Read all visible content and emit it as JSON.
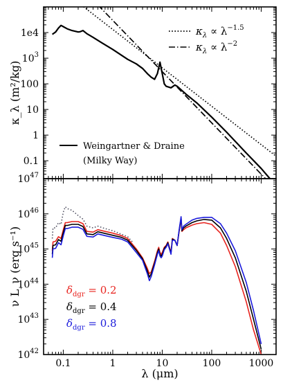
{
  "chart_data": [
    {
      "type": "line",
      "panel": "top",
      "ylabel": "κ_λ (m²/kg)",
      "x_scale": "log",
      "y_scale": "log",
      "xlim": [
        0.04,
        2000
      ],
      "ylim": [
        0.02,
        100000
      ],
      "ytick_labels": [
        {
          "value": 0.1,
          "label": "0.1"
        },
        {
          "value": 1,
          "label": "1"
        },
        {
          "value": 10,
          "label": "10"
        },
        {
          "value": 100,
          "label": "100"
        },
        {
          "value": 1000,
          "label": "10",
          "sup": "3"
        },
        {
          "value": 10000,
          "label": "1e4"
        }
      ],
      "legend_top": [
        {
          "name": "κ_λ ∝ λ^−1.5",
          "main": "κ",
          "sub": "λ",
          "mid": " ∝ λ",
          "sup": "−1.5",
          "dash": "dotted"
        },
        {
          "name": "κ_λ ∝ λ^−2",
          "main": "κ",
          "sub": "λ",
          "mid": " ∝ λ",
          "sup": "−2",
          "dash": "dashdot"
        }
      ],
      "legend_bottom": {
        "name": "Weingartner & Draine",
        "line2": "(Milky Way)"
      },
      "series": [
        {
          "name": "Weingartner & Draine",
          "style": "solid",
          "x": [
            0.06,
            0.07,
            0.08,
            0.09,
            0.1,
            0.12,
            0.15,
            0.2,
            0.22,
            0.25,
            0.3,
            0.4,
            0.6,
            1,
            2,
            3,
            4,
            5,
            6,
            7,
            8,
            9,
            10,
            11,
            12,
            15,
            18,
            20,
            25,
            30,
            50,
            100,
            200,
            500,
            1000,
            1500
          ],
          "y": [
            8500,
            10500,
            15000,
            19000,
            17000,
            14000,
            12000,
            10500,
            10800,
            12000,
            9000,
            6500,
            4000,
            2200,
            900,
            600,
            400,
            250,
            180,
            150,
            250,
            700,
            250,
            100,
            80,
            70,
            90,
            80,
            55,
            40,
            18,
            5,
            1.3,
            0.2,
            0.05,
            0.02
          ]
        },
        {
          "name": "κ_λ ∝ λ^−1.5",
          "style": "dotted",
          "x": [
            0.23,
            2000
          ],
          "y": [
            120000,
            0.15
          ]
        },
        {
          "name": "κ_λ ∝ λ^−2",
          "style": "dashdot",
          "x": [
            0.5,
            2000
          ],
          "y": [
            120000,
            0.0075
          ]
        }
      ]
    },
    {
      "type": "line",
      "panel": "bottom",
      "ylabel": "ν L_ν (erg s⁻¹)",
      "xlabel": "λ (μm)",
      "x_scale": "log",
      "y_scale": "log",
      "xlim": [
        0.04,
        2000
      ],
      "ylim": [
        1e+42,
        1e+47
      ],
      "xtick_labels": [
        {
          "value": 0.1,
          "label": "0.1"
        },
        {
          "value": 1,
          "label": "1"
        },
        {
          "value": 10,
          "label": "10"
        },
        {
          "value": 100,
          "label": "100"
        },
        {
          "value": 1000,
          "label": "1000"
        }
      ],
      "ytick_labels": [
        {
          "exp": 42,
          "label": "10",
          "sup": "42"
        },
        {
          "exp": 43,
          "label": "10",
          "sup": "43"
        },
        {
          "exp": 44,
          "label": "10",
          "sup": "44"
        },
        {
          "exp": 45,
          "label": "10",
          "sup": "45"
        },
        {
          "exp": 46,
          "label": "10",
          "sup": "46"
        },
        {
          "exp": 47,
          "label": "10",
          "sup": "47"
        }
      ],
      "legend": [
        {
          "name": "δ_dgr = 0.2",
          "sym": "δ",
          "sub": "dgr",
          "rest": " = 0.2",
          "color": "#e8231e"
        },
        {
          "name": "δ_dgr = 0.4",
          "sym": "δ",
          "sub": "dgr",
          "rest": " = 0.4",
          "color": "#000000"
        },
        {
          "name": "δ_dgr = 0.8",
          "sym": "δ",
          "sub": "dgr",
          "rest": " = 0.8",
          "color": "#1a1adb"
        }
      ],
      "series": [
        {
          "name": "unattenuated",
          "style": "dotted",
          "color": "#555566",
          "x": [
            0.06,
            0.062,
            0.07,
            0.08,
            0.09,
            0.1,
            0.11,
            0.12,
            0.15,
            0.2,
            0.25,
            0.3,
            0.4,
            0.5,
            0.7,
            1,
            1.5,
            2,
            2.5
          ],
          "log10y": [
            45.3,
            45.6,
            45.6,
            45.75,
            45.7,
            46.05,
            46.2,
            46.15,
            46.1,
            45.95,
            45.85,
            45.65,
            45.6,
            45.65,
            45.58,
            45.52,
            45.42,
            45.35,
            45.2
          ]
        },
        {
          "name": "δ_dgr = 0.2",
          "style": "solid",
          "color": "#e8231e",
          "x": [
            0.06,
            0.062,
            0.07,
            0.08,
            0.09,
            0.1,
            0.11,
            0.12,
            0.15,
            0.2,
            0.25,
            0.3,
            0.4,
            0.5,
            0.7,
            1,
            1.5,
            2,
            3,
            4,
            5,
            5.5,
            6,
            7,
            8,
            8.5,
            9,
            9.5,
            10,
            11,
            12,
            13,
            15,
            16,
            18,
            20,
            22,
            24,
            25,
            27,
            30,
            40,
            50,
            70,
            100,
            150,
            200,
            300,
            500,
            700,
            1000
          ],
          "log10y": [
            44.95,
            45.2,
            45.22,
            45.35,
            45.3,
            45.55,
            45.75,
            45.75,
            45.78,
            45.78,
            45.72,
            45.5,
            45.48,
            45.55,
            45.5,
            45.45,
            45.38,
            45.3,
            45.0,
            44.75,
            44.45,
            44.3,
            44.35,
            44.65,
            44.95,
            45.05,
            44.9,
            44.85,
            44.9,
            45.05,
            45.1,
            45.2,
            44.9,
            45.3,
            45.25,
            45.1,
            45.5,
            45.85,
            45.5,
            45.55,
            45.6,
            45.68,
            45.72,
            45.75,
            45.7,
            45.45,
            45.1,
            44.5,
            43.5,
            42.7,
            42.0
          ]
        },
        {
          "name": "δ_dgr = 0.4",
          "style": "solid",
          "color": "#000000",
          "x": [
            0.06,
            0.062,
            0.07,
            0.08,
            0.09,
            0.1,
            0.11,
            0.12,
            0.15,
            0.2,
            0.25,
            0.3,
            0.4,
            0.5,
            0.7,
            1,
            1.5,
            2,
            3,
            4,
            5,
            5.5,
            6,
            7,
            8,
            8.5,
            9,
            9.5,
            10,
            11,
            12,
            13,
            15,
            16,
            18,
            20,
            22,
            24,
            25,
            27,
            30,
            40,
            50,
            70,
            100,
            150,
            200,
            300,
            500,
            700,
            1000
          ],
          "log10y": [
            44.85,
            45.1,
            45.12,
            45.27,
            45.22,
            45.47,
            45.67,
            45.67,
            45.7,
            45.7,
            45.64,
            45.43,
            45.41,
            45.49,
            45.44,
            45.39,
            45.33,
            45.25,
            44.96,
            44.72,
            44.38,
            44.2,
            44.3,
            44.6,
            44.9,
            45.0,
            44.85,
            44.8,
            44.85,
            45.02,
            45.08,
            45.18,
            44.88,
            45.28,
            45.25,
            45.1,
            45.52,
            45.88,
            45.52,
            45.6,
            45.65,
            45.75,
            45.8,
            45.84,
            45.82,
            45.6,
            45.3,
            44.75,
            43.8,
            43.0,
            42.15
          ]
        },
        {
          "name": "δ_dgr = 0.8",
          "style": "solid",
          "color": "#1a1adb",
          "x": [
            0.06,
            0.062,
            0.07,
            0.08,
            0.09,
            0.1,
            0.11,
            0.12,
            0.15,
            0.2,
            0.25,
            0.3,
            0.4,
            0.5,
            0.7,
            1,
            1.5,
            2,
            3,
            4,
            5,
            5.5,
            6,
            7,
            8,
            8.5,
            9,
            9.5,
            10,
            11,
            12,
            13,
            15,
            16,
            18,
            20,
            22,
            24,
            25,
            27,
            30,
            40,
            50,
            70,
            100,
            150,
            200,
            300,
            500,
            700,
            1000
          ],
          "log10y": [
            44.75,
            45.0,
            45.02,
            45.18,
            45.12,
            45.38,
            45.58,
            45.58,
            45.62,
            45.62,
            45.56,
            45.36,
            45.34,
            45.43,
            45.38,
            45.33,
            45.28,
            45.2,
            44.9,
            44.68,
            44.3,
            44.1,
            44.22,
            44.55,
            44.85,
            44.95,
            44.8,
            44.75,
            44.8,
            44.98,
            45.05,
            45.15,
            44.85,
            45.25,
            45.25,
            45.1,
            45.55,
            45.92,
            45.55,
            45.65,
            45.7,
            45.82,
            45.87,
            45.9,
            45.9,
            45.72,
            45.45,
            44.95,
            44.05,
            43.25,
            42.3
          ]
        }
      ]
    }
  ]
}
